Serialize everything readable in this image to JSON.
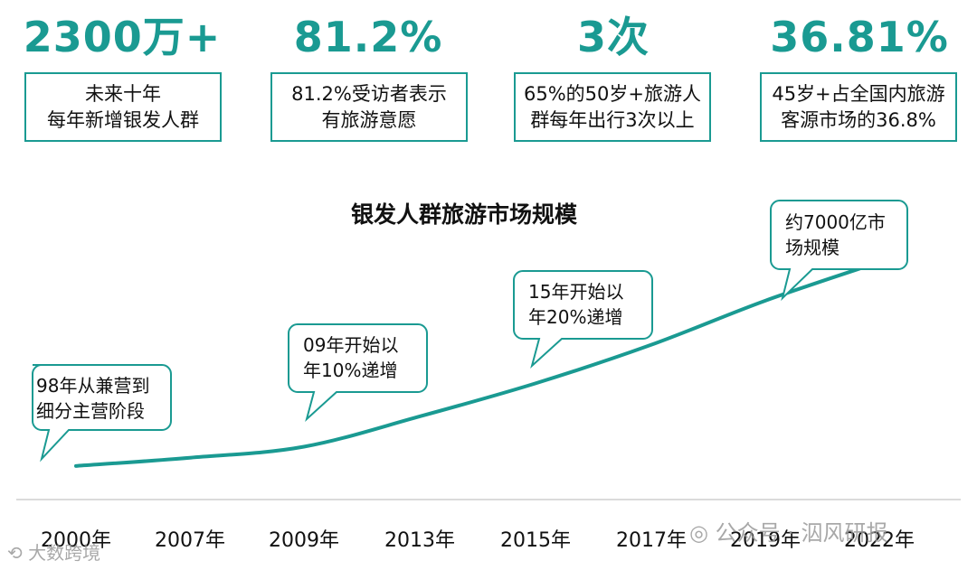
{
  "stats": [
    {
      "value": "2300万+",
      "desc": "未来十年\n每年新增银发人群"
    },
    {
      "value": "81.2%",
      "desc": "81.2%受访者表示\n有旅游意愿"
    },
    {
      "value": "3次",
      "desc": "65%的50岁+旅游人\n群每年出行3次以上"
    },
    {
      "value": "36.81%",
      "desc": "45岁+占全国内旅游\n客源市场的36.8%"
    }
  ],
  "chart_data": {
    "type": "line",
    "title": "银发人群旅游市场规模",
    "categories": [
      "2000年",
      "2007年",
      "2009年",
      "2013年",
      "2015年",
      "2017年",
      "2019年",
      "2022年"
    ],
    "series": [
      {
        "values": [
          3,
          6,
          10,
          21,
          33,
          47,
          63,
          77
        ]
      }
    ],
    "ylim": [
      0,
      100
    ],
    "annotations": [
      {
        "text": "98年从兼营到\n细分主营阶段"
      },
      {
        "text": "09年开始以\n年10%递增"
      },
      {
        "text": "15年开始以\n年20%递增"
      },
      {
        "text": "约7000亿市\n场规模"
      }
    ],
    "grid": false,
    "accent": "#1a9a92"
  },
  "watermarks": {
    "left": "大数跨境",
    "right": "公众号 · 泅风研报"
  }
}
